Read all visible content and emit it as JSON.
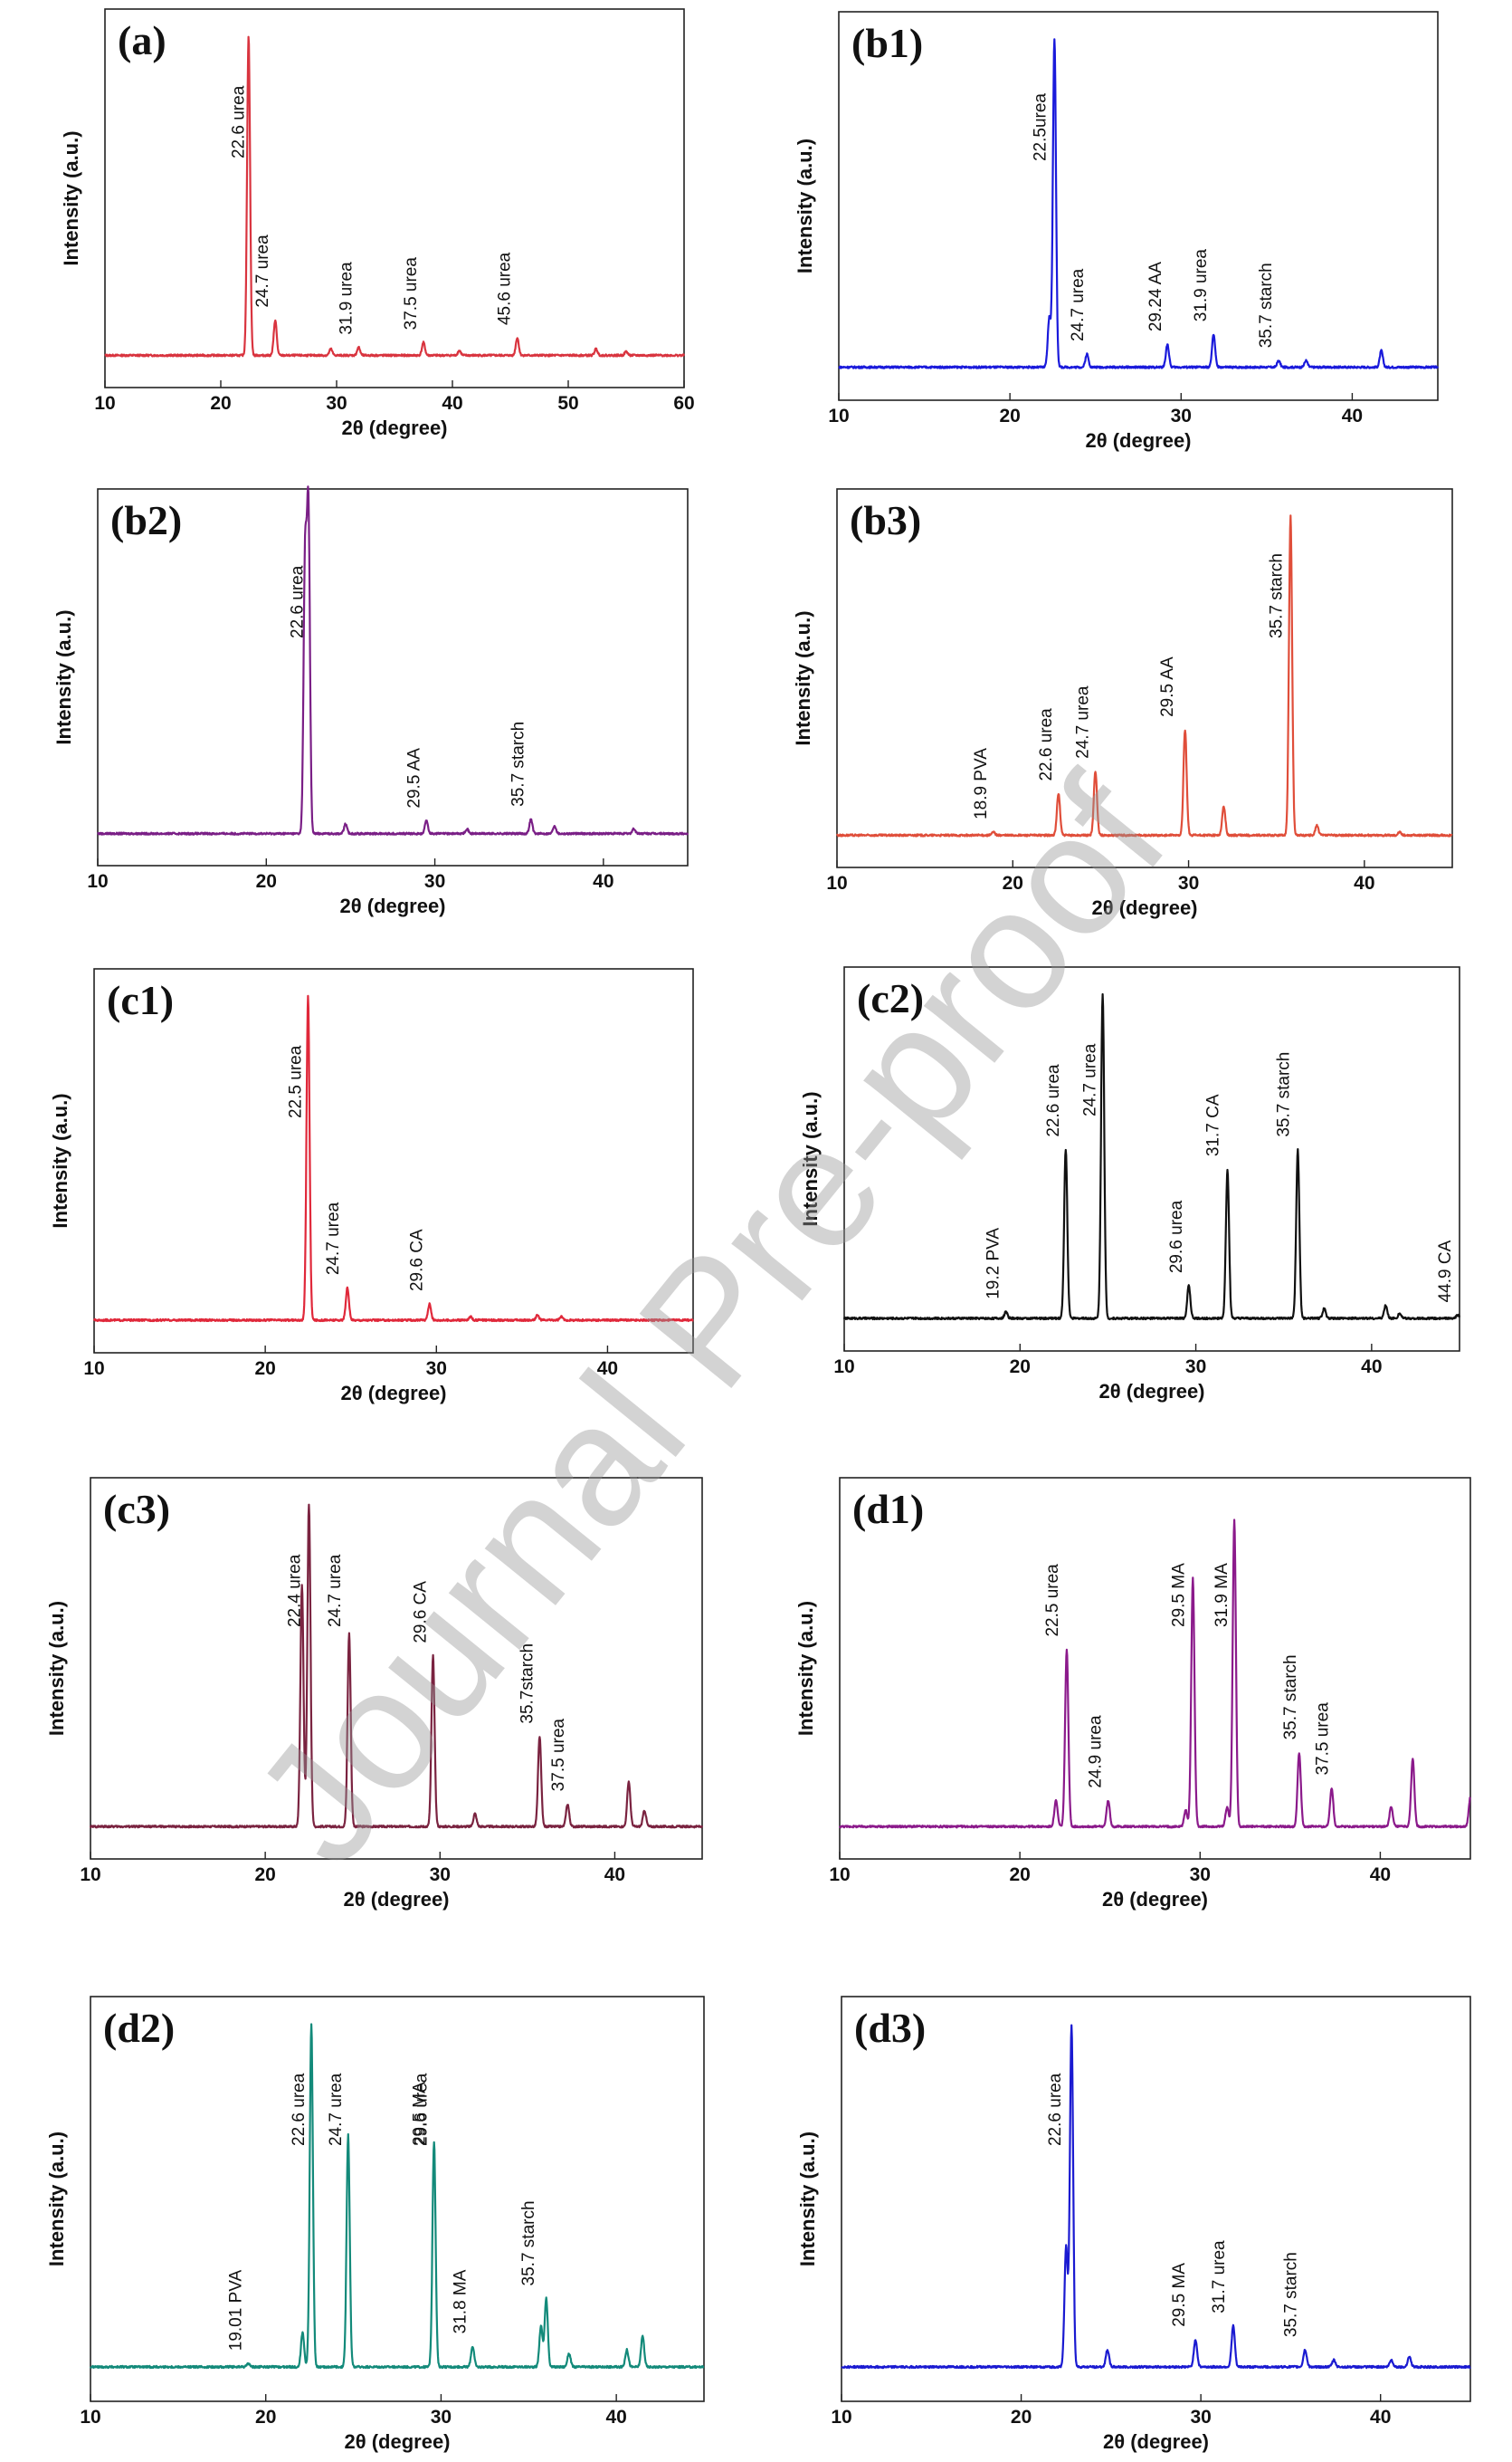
{
  "watermark": "Journal Pre-proof",
  "chart_data": [
    {
      "panel": "(a)",
      "type": "line",
      "color": "#d9343f",
      "xlabel": "2θ (degree)",
      "ylabel": "Intensity (a.u.)",
      "xlim": [
        10,
        60
      ],
      "xticks": [
        10,
        20,
        30,
        40,
        50,
        60
      ],
      "peaks": [
        [
          22.4,
          1.0
        ],
        [
          24.7,
          0.11
        ],
        [
          29.5,
          0.02
        ],
        [
          31.9,
          0.025
        ],
        [
          37.5,
          0.04
        ],
        [
          40.6,
          0.015
        ],
        [
          45.6,
          0.055
        ],
        [
          52.4,
          0.02
        ],
        [
          55.0,
          0.012
        ]
      ],
      "annotations": [
        {
          "x": 22.6,
          "text": "22.6 urea"
        },
        {
          "x": 24.7,
          "text": "24.7 urea"
        },
        {
          "x": 31.9,
          "text": "31.9 urea"
        },
        {
          "x": 37.5,
          "text": "37.5 urea"
        },
        {
          "x": 45.6,
          "text": "45.6 urea"
        }
      ]
    },
    {
      "panel": "(b1)",
      "type": "line",
      "color": "#1a1adb",
      "xlabel": "2θ (degree)",
      "ylabel": "Intensity (a.u.)",
      "xlim": [
        10,
        45
      ],
      "xticks": [
        10,
        20,
        30,
        40
      ],
      "peaks": [
        [
          22.3,
          0.15
        ],
        [
          22.6,
          1.0
        ],
        [
          24.5,
          0.04
        ],
        [
          29.2,
          0.07
        ],
        [
          31.9,
          0.1
        ],
        [
          35.7,
          0.02
        ],
        [
          37.3,
          0.02
        ],
        [
          41.7,
          0.05
        ]
      ],
      "annotations": [
        {
          "x": 22.5,
          "text": "22.5urea"
        },
        {
          "x": 24.7,
          "text": "24.7 urea"
        },
        {
          "x": 29.24,
          "text": "29.24 AA"
        },
        {
          "x": 31.9,
          "text": "31.9 urea"
        },
        {
          "x": 35.7,
          "text": "35.7 starch"
        }
      ]
    },
    {
      "panel": "(b2)",
      "type": "line",
      "color": "#7a1f86",
      "xlabel": "2θ (degree)",
      "ylabel": "Intensity (a.u.)",
      "xlim": [
        10,
        45
      ],
      "xticks": [
        10,
        20,
        30,
        40
      ],
      "peaks": [
        [
          22.3,
          0.85
        ],
        [
          22.5,
          1.0
        ],
        [
          24.7,
          0.03
        ],
        [
          29.5,
          0.04
        ],
        [
          31.9,
          0.015
        ],
        [
          35.7,
          0.045
        ],
        [
          37.1,
          0.025
        ],
        [
          41.8,
          0.015
        ]
      ],
      "annotations": [
        {
          "x": 22.6,
          "text": "22.6 urea"
        },
        {
          "x": 29.5,
          "text": "29.5 AA"
        },
        {
          "x": 35.7,
          "text": "35.7 starch"
        }
      ]
    },
    {
      "panel": "(b3)",
      "type": "line",
      "color": "#e04e3a",
      "xlabel": "2θ (degree)",
      "ylabel": "Intensity (a.u.)",
      "xlim": [
        10,
        45
      ],
      "xticks": [
        10,
        20,
        30,
        40
      ],
      "peaks": [
        [
          18.9,
          0.01
        ],
        [
          22.6,
          0.13
        ],
        [
          24.7,
          0.2
        ],
        [
          29.8,
          0.33
        ],
        [
          32.0,
          0.09
        ],
        [
          35.8,
          1.0
        ],
        [
          37.3,
          0.03
        ],
        [
          42.0,
          0.01
        ]
      ],
      "annotations": [
        {
          "x": 18.9,
          "text": "18.9 PVA"
        },
        {
          "x": 22.6,
          "text": "22.6 urea"
        },
        {
          "x": 24.7,
          "text": "24.7 urea"
        },
        {
          "x": 29.5,
          "text": "29.5 AA"
        },
        {
          "x": 35.7,
          "text": "35.7 starch"
        }
      ]
    },
    {
      "panel": "(c1)",
      "type": "line",
      "color": "#e0283a",
      "xlabel": "2θ (degree)",
      "ylabel": "Intensity (a.u.)",
      "xlim": [
        10,
        45
      ],
      "xticks": [
        10,
        20,
        30,
        40
      ],
      "peaks": [
        [
          22.5,
          1.0
        ],
        [
          24.8,
          0.1
        ],
        [
          29.6,
          0.05
        ],
        [
          32.0,
          0.01
        ],
        [
          35.9,
          0.015
        ],
        [
          37.3,
          0.01
        ]
      ],
      "annotations": [
        {
          "x": 22.5,
          "text": "22.5 urea"
        },
        {
          "x": 24.7,
          "text": "24.7 urea"
        },
        {
          "x": 29.6,
          "text": "29.6 CA"
        }
      ]
    },
    {
      "panel": "(c2)",
      "type": "line",
      "color": "#111111",
      "xlabel": "2θ (degree)",
      "ylabel": "Intensity (a.u.)",
      "xlim": [
        10,
        45
      ],
      "xticks": [
        10,
        20,
        30,
        40
      ],
      "peaks": [
        [
          19.2,
          0.02
        ],
        [
          22.6,
          0.52
        ],
        [
          24.7,
          1.0
        ],
        [
          29.6,
          0.1
        ],
        [
          31.8,
          0.46
        ],
        [
          35.8,
          0.52
        ],
        [
          37.3,
          0.03
        ],
        [
          40.8,
          0.04
        ],
        [
          41.6,
          0.015
        ],
        [
          44.9,
          0.01
        ]
      ],
      "annotations": [
        {
          "x": 19.2,
          "text": "19.2 PVA"
        },
        {
          "x": 22.6,
          "text": "22.6 urea"
        },
        {
          "x": 24.7,
          "text": "24.7 urea"
        },
        {
          "x": 29.6,
          "text": "29.6 urea"
        },
        {
          "x": 31.7,
          "text": "31.7 CA"
        },
        {
          "x": 35.7,
          "text": "35.7 starch"
        },
        {
          "x": 44.9,
          "text": "44.9 CA"
        }
      ]
    },
    {
      "panel": "(c3)",
      "type": "line",
      "color": "#7a2340",
      "xlabel": "2θ (degree)",
      "ylabel": "Intensity (a.u.)",
      "xlim": [
        10,
        45
      ],
      "xticks": [
        10,
        20,
        30,
        40
      ],
      "peaks": [
        [
          22.1,
          0.75
        ],
        [
          22.5,
          1.0
        ],
        [
          24.8,
          0.6
        ],
        [
          29.6,
          0.53
        ],
        [
          32.0,
          0.04
        ],
        [
          35.7,
          0.28
        ],
        [
          37.3,
          0.07
        ],
        [
          40.8,
          0.14
        ],
        [
          41.7,
          0.05
        ]
      ],
      "annotations": [
        {
          "x": 22.4,
          "text": "22.4 urea"
        },
        {
          "x": 24.7,
          "text": "24.7 urea"
        },
        {
          "x": 29.6,
          "text": "29.6 CA"
        },
        {
          "x": 35.7,
          "text": "35.7starch"
        },
        {
          "x": 37.5,
          "text": "37.5 urea"
        }
      ]
    },
    {
      "panel": "(d1)",
      "type": "line",
      "color": "#8b1a8b",
      "xlabel": "2θ (degree)",
      "ylabel": "Intensity (a.u.)",
      "xlim": [
        10,
        45
      ],
      "xticks": [
        10,
        20,
        30,
        40
      ],
      "peaks": [
        [
          22.0,
          0.08
        ],
        [
          22.6,
          0.55
        ],
        [
          24.9,
          0.08
        ],
        [
          29.2,
          0.05
        ],
        [
          29.6,
          0.77
        ],
        [
          31.5,
          0.06
        ],
        [
          31.9,
          0.95
        ],
        [
          35.5,
          0.23
        ],
        [
          37.3,
          0.12
        ],
        [
          40.6,
          0.06
        ],
        [
          41.8,
          0.21
        ],
        [
          45.0,
          0.09
        ]
      ],
      "annotations": [
        {
          "x": 22.5,
          "text": "22.5 urea"
        },
        {
          "x": 24.9,
          "text": "24.9 urea"
        },
        {
          "x": 29.5,
          "text": "29.5 MA"
        },
        {
          "x": 31.9,
          "text": "31.9 MA"
        },
        {
          "x": 35.7,
          "text": "35.7 starch"
        },
        {
          "x": 37.5,
          "text": "37.5 urea"
        }
      ]
    },
    {
      "panel": "(d2)",
      "type": "line",
      "color": "#138a7a",
      "xlabel": "2θ (degree)",
      "ylabel": "Intensity (a.u.)",
      "xlim": [
        10,
        45
      ],
      "xticks": [
        10,
        20,
        30,
        40
      ],
      "peaks": [
        [
          19.0,
          0.01
        ],
        [
          22.1,
          0.1
        ],
        [
          22.6,
          1.0
        ],
        [
          24.7,
          0.68
        ],
        [
          29.6,
          0.66
        ],
        [
          31.8,
          0.06
        ],
        [
          35.7,
          0.12
        ],
        [
          36.0,
          0.2
        ],
        [
          37.3,
          0.04
        ],
        [
          40.6,
          0.05
        ],
        [
          41.5,
          0.09
        ]
      ],
      "annotations": [
        {
          "x": 19.01,
          "text": "19.01 PVA"
        },
        {
          "x": 22.6,
          "text": "22.6 urea"
        },
        {
          "x": 24.7,
          "text": "24.7 urea"
        },
        {
          "x": 29.5,
          "text": "29.5 MA"
        },
        {
          "x": 29.6,
          "text": "29.6 urea"
        },
        {
          "x": 31.8,
          "text": "31.8 MA"
        },
        {
          "x": 35.7,
          "text": "35.7 starch"
        }
      ]
    },
    {
      "panel": "(d3)",
      "type": "line",
      "color": "#1a1ad1",
      "xlabel": "2θ (degree)",
      "ylabel": "Intensity (a.u.)",
      "xlim": [
        10,
        45
      ],
      "xticks": [
        10,
        20,
        30,
        40
      ],
      "peaks": [
        [
          22.5,
          0.35
        ],
        [
          22.8,
          1.0
        ],
        [
          24.8,
          0.05
        ],
        [
          29.7,
          0.08
        ],
        [
          31.8,
          0.12
        ],
        [
          35.8,
          0.05
        ],
        [
          37.4,
          0.02
        ],
        [
          40.6,
          0.02
        ],
        [
          41.6,
          0.03
        ]
      ],
      "annotations": [
        {
          "x": 22.6,
          "text": "22.6 urea"
        },
        {
          "x": 29.5,
          "text": "29.5 MA"
        },
        {
          "x": 31.7,
          "text": "31.7 urea"
        },
        {
          "x": 35.7,
          "text": "35.7 starch"
        }
      ]
    }
  ]
}
